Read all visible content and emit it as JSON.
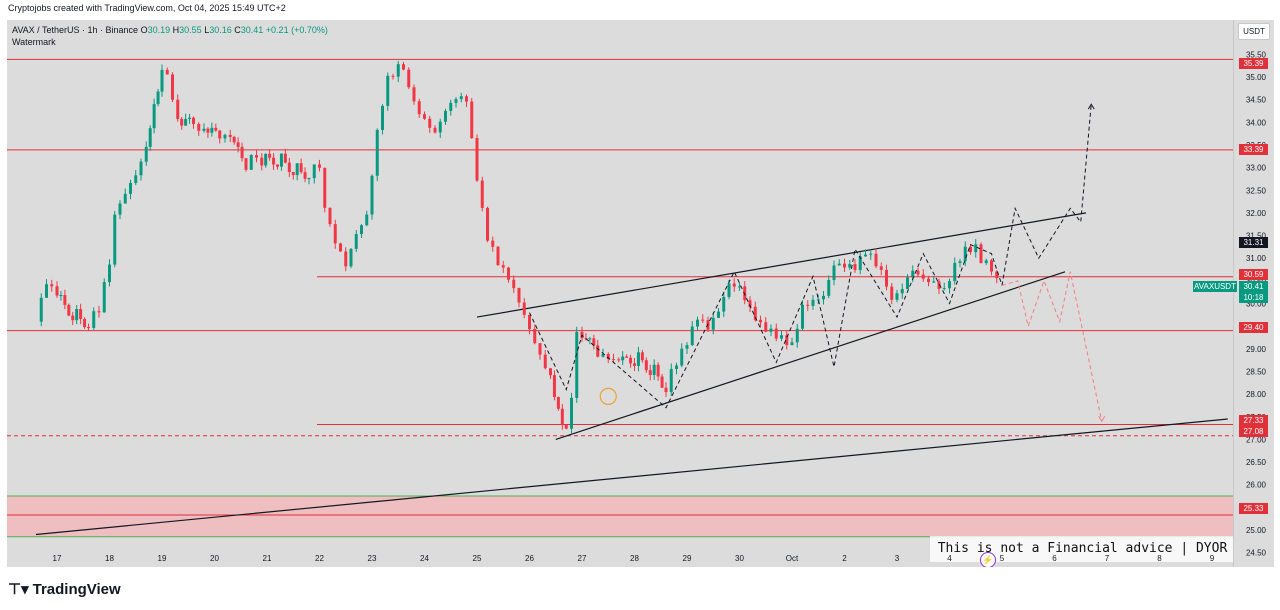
{
  "header": {
    "credit": "Cryptojobs created with TradingView.com, Oct 04, 2025 15:49 UTC+2"
  },
  "legend": {
    "symbol": "AVAX / TetherUS · 1h · Binance",
    "open_label": "O",
    "open": "30.19",
    "high_label": "H",
    "high": "30.55",
    "low_label": "L",
    "low": "30.16",
    "close_label": "C",
    "close": "30.41",
    "change": "+0.21 (+0.70%)",
    "watermark": "Watermark"
  },
  "currency_button": "USDT",
  "price_tags": {
    "t35_39": "35.39",
    "t33_39": "33.39",
    "t31_31": "31.31",
    "t30_59": "30.59",
    "t29_40": "29.40",
    "t27_33": "27.33",
    "t27_08": "27.08",
    "t25_33": "25.33",
    "symbol_tag": "AVAXUSDT",
    "last_price": "30.41",
    "countdown": "10:18"
  },
  "notice": "This is not a Financial advice | DYOR",
  "brand": "TradingView",
  "colors": {
    "up": "#089981",
    "down": "#f23645",
    "level": "#e0303a",
    "zone": "#f4b6b9",
    "bg": "#dcdcdc"
  },
  "chart_data": {
    "type": "candlestick",
    "ylim": [
      24.4,
      36.0
    ],
    "y_ticks": [
      "35.50",
      "35.00",
      "34.50",
      "34.00",
      "33.50",
      "33.00",
      "32.50",
      "32.00",
      "31.50",
      "31.00",
      "30.50",
      "30.00",
      "29.50",
      "29.00",
      "28.50",
      "28.00",
      "27.50",
      "27.00",
      "26.50",
      "26.00",
      "25.50",
      "25.00",
      "24.50"
    ],
    "x_ticks": [
      "17",
      "18",
      "19",
      "20",
      "21",
      "22",
      "23",
      "24",
      "25",
      "26",
      "27",
      "28",
      "29",
      "30",
      "Oct",
      "2",
      "3",
      "4",
      "5",
      "6",
      "7",
      "8",
      "9"
    ],
    "horizontal_levels": [
      35.39,
      33.39,
      30.59,
      29.4,
      27.33,
      27.08,
      25.33
    ],
    "demand_zone": [
      24.85,
      25.75
    ],
    "price_path": [
      [
        16.6,
        29.6
      ],
      [
        16.8,
        30.3
      ],
      [
        17.0,
        30.1
      ],
      [
        17.3,
        29.8
      ],
      [
        17.6,
        29.6
      ],
      [
        17.8,
        29.9
      ],
      [
        18.0,
        31.0
      ],
      [
        18.1,
        32.0
      ],
      [
        18.3,
        32.6
      ],
      [
        18.5,
        33.0
      ],
      [
        18.7,
        33.6
      ],
      [
        18.85,
        34.5
      ],
      [
        19.0,
        35.2
      ],
      [
        19.1,
        35.2
      ],
      [
        19.3,
        34.0
      ],
      [
        19.6,
        33.9
      ],
      [
        19.8,
        33.7
      ],
      [
        20.1,
        33.7
      ],
      [
        20.3,
        33.5
      ],
      [
        20.6,
        33.1
      ],
      [
        20.9,
        33.1
      ],
      [
        21.2,
        33.2
      ],
      [
        21.5,
        33.0
      ],
      [
        21.8,
        32.9
      ],
      [
        22.0,
        33.1
      ],
      [
        22.1,
        32.1
      ],
      [
        22.3,
        31.5
      ],
      [
        22.5,
        31.0
      ],
      [
        22.7,
        31.7
      ],
      [
        22.9,
        32.1
      ],
      [
        23.0,
        33.0
      ],
      [
        23.1,
        34.0
      ],
      [
        23.3,
        35.0
      ],
      [
        23.5,
        35.2
      ],
      [
        23.6,
        35.2
      ],
      [
        23.8,
        34.3
      ],
      [
        24.0,
        33.9
      ],
      [
        24.2,
        33.6
      ],
      [
        24.4,
        34.1
      ],
      [
        24.6,
        34.4
      ],
      [
        24.8,
        34.4
      ],
      [
        24.9,
        33.5
      ],
      [
        25.0,
        32.6
      ],
      [
        25.2,
        31.5
      ],
      [
        25.4,
        31.0
      ],
      [
        25.6,
        30.7
      ],
      [
        25.8,
        30.2
      ],
      [
        26.0,
        29.6
      ],
      [
        26.2,
        29.0
      ],
      [
        26.4,
        28.5
      ],
      [
        26.55,
        27.7
      ],
      [
        26.7,
        27.2
      ],
      [
        26.8,
        28.0
      ],
      [
        26.9,
        29.4
      ],
      [
        27.0,
        29.2
      ],
      [
        27.3,
        28.9
      ],
      [
        27.5,
        28.6
      ],
      [
        27.7,
        28.6
      ],
      [
        28.0,
        28.8
      ],
      [
        28.3,
        28.6
      ],
      [
        28.6,
        28.2
      ],
      [
        28.8,
        28.7
      ],
      [
        29.0,
        29.2
      ],
      [
        29.2,
        29.8
      ],
      [
        29.4,
        29.6
      ],
      [
        29.6,
        30.0
      ],
      [
        29.8,
        30.6
      ],
      [
        30.0,
        30.5
      ],
      [
        30.2,
        30.0
      ],
      [
        30.4,
        29.6
      ],
      [
        30.6,
        29.4
      ],
      [
        30.8,
        29.2
      ],
      [
        31.0,
        29.0
      ],
      [
        31.2,
        29.8
      ],
      [
        31.4,
        29.9
      ],
      [
        31.6,
        30.0
      ],
      [
        31.8,
        30.7
      ],
      [
        32.0,
        30.7
      ],
      [
        32.2,
        30.7
      ],
      [
        32.4,
        31.1
      ],
      [
        32.6,
        30.9
      ],
      [
        32.8,
        30.5
      ],
      [
        32.9,
        30.1
      ],
      [
        33.1,
        30.5
      ],
      [
        33.3,
        30.9
      ],
      [
        33.5,
        30.7
      ],
      [
        33.7,
        30.6
      ],
      [
        33.9,
        30.4
      ],
      [
        34.1,
        30.9
      ],
      [
        34.3,
        31.2
      ],
      [
        34.5,
        31.2
      ],
      [
        34.6,
        30.9
      ],
      [
        34.7,
        30.9
      ],
      [
        34.8,
        30.6
      ],
      [
        34.9,
        30.41
      ]
    ],
    "channel": {
      "upper": [
        [
          25.0,
          29.7
        ],
        [
          27.5,
          30.6
        ],
        [
          30.0,
          30.8
        ],
        [
          33.0,
          31.3
        ],
        [
          36.6,
          32.0
        ]
      ],
      "lower": [
        [
          26.5,
          27.0
        ],
        [
          28.0,
          27.6
        ],
        [
          29.0,
          28.2
        ],
        [
          31.0,
          28.9
        ],
        [
          33.0,
          29.6
        ],
        [
          36.2,
          30.7
        ]
      ]
    },
    "long_trendline": [
      [
        16.6,
        24.9
      ],
      [
        39.3,
        27.45
      ]
    ],
    "zigzag": [
      [
        26.0,
        29.8
      ],
      [
        26.7,
        28.1
      ],
      [
        27.0,
        29.3
      ],
      [
        28.6,
        27.7
      ],
      [
        29.9,
        30.7
      ],
      [
        30.7,
        28.7
      ],
      [
        31.4,
        30.6
      ],
      [
        31.8,
        28.6
      ],
      [
        32.2,
        31.2
      ],
      [
        33.0,
        29.7
      ],
      [
        33.5,
        31.1
      ],
      [
        34.0,
        30.0
      ],
      [
        34.4,
        31.3
      ],
      [
        34.8,
        31.1
      ],
      [
        35.0,
        30.4
      ]
    ],
    "bull_projection": [
      [
        35.0,
        30.4
      ],
      [
        35.25,
        32.1
      ],
      [
        35.7,
        31.0
      ],
      [
        36.3,
        32.1
      ],
      [
        36.5,
        31.8
      ],
      [
        36.7,
        34.4
      ]
    ],
    "bear_projection": [
      [
        35.0,
        30.4
      ],
      [
        35.3,
        30.5
      ],
      [
        35.5,
        29.5
      ],
      [
        35.8,
        30.5
      ],
      [
        36.1,
        29.6
      ],
      [
        36.3,
        30.7
      ],
      [
        36.9,
        27.4
      ]
    ],
    "markers": [
      {
        "at": [
          27.5,
          27.95
        ],
        "kind": "circle"
      }
    ]
  }
}
